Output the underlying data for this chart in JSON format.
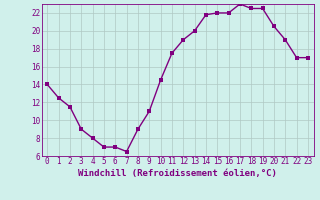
{
  "x": [
    0,
    1,
    2,
    3,
    4,
    5,
    6,
    7,
    8,
    9,
    10,
    11,
    12,
    13,
    14,
    15,
    16,
    17,
    18,
    19,
    20,
    21,
    22,
    23
  ],
  "y": [
    14,
    12.5,
    11.5,
    9,
    8,
    7,
    7,
    6.5,
    9,
    11,
    14.5,
    17.5,
    19,
    20,
    21.8,
    22,
    22,
    23,
    22.5,
    22.5,
    20.5,
    19,
    17,
    17
  ],
  "line_color": "#800080",
  "marker_color": "#800080",
  "bg_color": "#d0f0eb",
  "grid_color": "#b0c8c4",
  "axis_color": "#800080",
  "xlabel": "Windchill (Refroidissement éolien,°C)",
  "xlim_min": -0.5,
  "xlim_max": 23.5,
  "ylim_min": 6,
  "ylim_max": 23,
  "yticks": [
    6,
    8,
    10,
    12,
    14,
    16,
    18,
    20,
    22
  ],
  "xticks": [
    0,
    1,
    2,
    3,
    4,
    5,
    6,
    7,
    8,
    9,
    10,
    11,
    12,
    13,
    14,
    15,
    16,
    17,
    18,
    19,
    20,
    21,
    22,
    23
  ],
  "xlabel_fontsize": 6.5,
  "tick_fontsize": 5.5,
  "line_width": 1.0,
  "marker_size": 2.5
}
